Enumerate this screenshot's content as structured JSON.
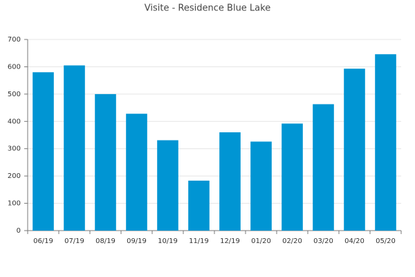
{
  "chart_data": {
    "type": "bar",
    "title": "Visite - Residence Blue Lake",
    "categories": [
      "06/19",
      "07/19",
      "08/19",
      "09/19",
      "10/19",
      "11/19",
      "12/19",
      "01/20",
      "02/20",
      "03/20",
      "04/20",
      "05/20"
    ],
    "values": [
      580,
      605,
      500,
      428,
      331,
      183,
      360,
      326,
      392,
      463,
      593,
      646
    ],
    "color": "#0095d3",
    "ylim": [
      0,
      700
    ],
    "yticks": [
      0,
      100,
      200,
      300,
      400,
      500,
      600,
      700
    ],
    "grid": true
  }
}
